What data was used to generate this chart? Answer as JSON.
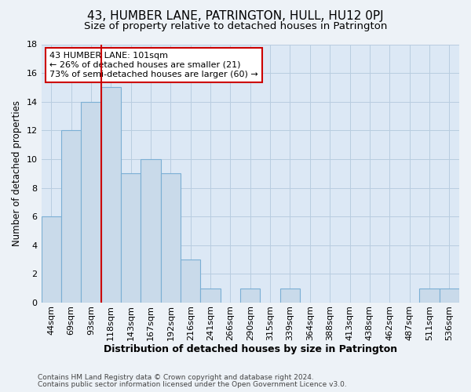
{
  "title": "43, HUMBER LANE, PATRINGTON, HULL, HU12 0PJ",
  "subtitle": "Size of property relative to detached houses in Patrington",
  "xlabel": "Distribution of detached houses by size in Patrington",
  "ylabel": "Number of detached properties",
  "bar_labels": [
    "44sqm",
    "69sqm",
    "93sqm",
    "118sqm",
    "143sqm",
    "167sqm",
    "192sqm",
    "216sqm",
    "241sqm",
    "266sqm",
    "290sqm",
    "315sqm",
    "339sqm",
    "364sqm",
    "388sqm",
    "413sqm",
    "438sqm",
    "462sqm",
    "487sqm",
    "511sqm",
    "536sqm"
  ],
  "bar_values": [
    6,
    12,
    14,
    15,
    9,
    10,
    9,
    3,
    1,
    0,
    1,
    0,
    1,
    0,
    0,
    0,
    0,
    0,
    0,
    1,
    1
  ],
  "bar_color": "#c9daea",
  "bar_edge_color": "#7bafd4",
  "vline_x_index": 2,
  "vline_color": "#cc0000",
  "annotation_text": "43 HUMBER LANE: 101sqm\n← 26% of detached houses are smaller (21)\n73% of semi-detached houses are larger (60) →",
  "annotation_box_color": "#ffffff",
  "annotation_box_edge": "#cc0000",
  "ylim": [
    0,
    18
  ],
  "yticks": [
    0,
    2,
    4,
    6,
    8,
    10,
    12,
    14,
    16,
    18
  ],
  "footnote1": "Contains HM Land Registry data © Crown copyright and database right 2024.",
  "footnote2": "Contains public sector information licensed under the Open Government Licence v3.0.",
  "bg_color": "#edf2f7",
  "plot_bg_color": "#dce8f5",
  "grid_color": "#b8cde0",
  "title_fontsize": 11,
  "subtitle_fontsize": 9.5,
  "xlabel_fontsize": 9,
  "ylabel_fontsize": 8.5,
  "tick_fontsize": 8,
  "annot_fontsize": 8,
  "footnote_fontsize": 6.5
}
